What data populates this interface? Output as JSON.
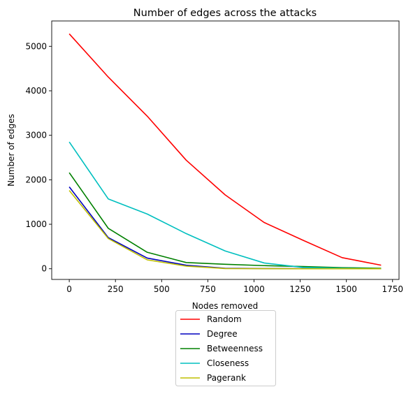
{
  "chart_data": {
    "type": "line",
    "title": "Number of edges across the attacks",
    "xlabel": "Nodes removed",
    "ylabel": "Number of edges",
    "xlim": [
      -95,
      1785
    ],
    "ylim": [
      -240,
      5570
    ],
    "xticks": [
      0,
      250,
      500,
      750,
      1000,
      1250,
      1500,
      1750
    ],
    "yticks": [
      0,
      1000,
      2000,
      3000,
      4000,
      5000
    ],
    "x": [
      0,
      211,
      422,
      633,
      844,
      1055,
      1266,
      1477,
      1688
    ],
    "series": [
      {
        "name": "Random",
        "color": "#ff0000",
        "values": [
          5280,
          4310,
          3430,
          2440,
          1660,
          1040,
          640,
          250,
          80
        ]
      },
      {
        "name": "Degree",
        "color": "#0000bf",
        "values": [
          1840,
          700,
          240,
          80,
          10,
          5,
          2,
          1,
          0
        ]
      },
      {
        "name": "Betweenness",
        "color": "#008000",
        "values": [
          2160,
          910,
          370,
          140,
          100,
          70,
          50,
          25,
          10
        ]
      },
      {
        "name": "Closeness",
        "color": "#00bfbf",
        "values": [
          2850,
          1570,
          1230,
          790,
          400,
          130,
          30,
          10,
          0
        ]
      },
      {
        "name": "Pagerank",
        "color": "#bfbf00",
        "values": [
          1760,
          680,
          200,
          60,
          5,
          2,
          1,
          0,
          0
        ]
      }
    ],
    "legend_position": "below"
  }
}
